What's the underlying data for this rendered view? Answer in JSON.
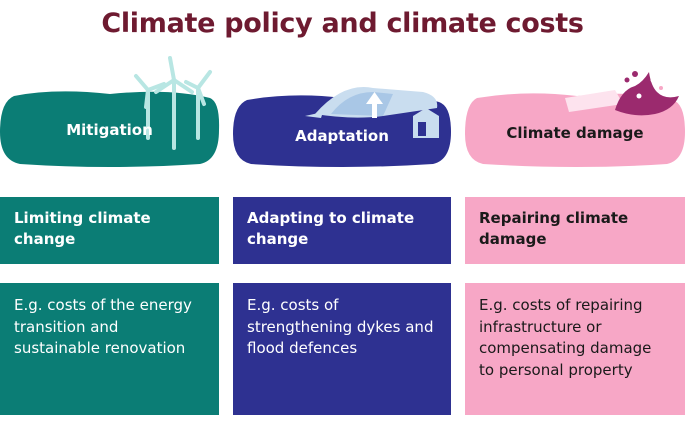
{
  "title": "Climate policy and climate costs",
  "colors": {
    "title": "#6e1a30",
    "mitigation": "#0b7d75",
    "adaptation": "#2e3191",
    "damage": "#f7a7c6",
    "damage_text": "#1a1a1a",
    "wave": "#9b2a6e",
    "ice": "#c9ddef"
  },
  "columns": [
    {
      "key": "mitigation",
      "label": "Mitigation",
      "icon": "wind-turbines-icon",
      "heading": "Limiting climate change",
      "description": "E.g. costs of the energy transition and sustainable renovation"
    },
    {
      "key": "adaptation",
      "label": "Adaptation",
      "icon": "dyke-house-icon",
      "heading": "Adapting to climate change",
      "description": "E.g. costs of strengthening dykes and flood defences"
    },
    {
      "key": "damage",
      "label": "Climate damage",
      "icon": "flood-wave-icon",
      "heading": "Repairing climate damage",
      "description": "E.g. costs of repairing infrastructure or compensating damage to personal property"
    }
  ]
}
